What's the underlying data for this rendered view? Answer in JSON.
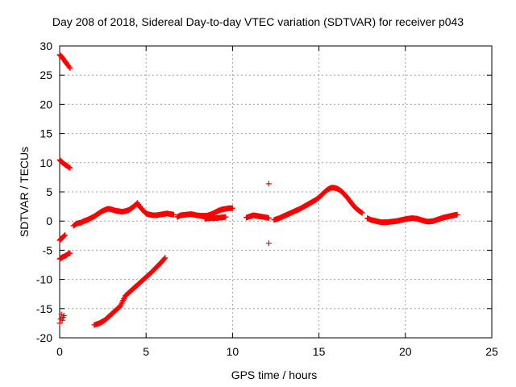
{
  "chart_data": {
    "type": "scatter",
    "title": "Day 208 of 2018, Sidereal Day-to-day VTEC variation (SDTVAR) for receiver p043",
    "xlabel": "GPS time / hours",
    "ylabel": "SDTVAR / TECUs",
    "xlim": [
      0,
      25
    ],
    "ylim": [
      -20,
      30
    ],
    "xticks": [
      0,
      5,
      10,
      15,
      20,
      25
    ],
    "yticks": [
      -20,
      -15,
      -10,
      -5,
      0,
      5,
      10,
      15,
      20,
      25,
      30
    ],
    "grid": true,
    "marker": "+",
    "color": "#ff0000",
    "series": [
      {
        "name": "SDTVAR",
        "segments": [
          {
            "x": [
              0.0,
              0.1,
              0.2,
              0.3,
              0.4,
              0.5,
              0.6
            ],
            "y": [
              28.5,
              28.2,
              27.8,
              27.4,
              27.0,
              26.6,
              26.2
            ]
          },
          {
            "x": [
              0.0,
              0.1,
              0.2,
              0.3,
              0.4,
              0.5,
              0.6
            ],
            "y": [
              10.5,
              10.2,
              9.9,
              9.7,
              9.5,
              9.3,
              9.1
            ]
          },
          {
            "x": [
              0.0,
              0.1,
              0.2,
              0.3
            ],
            "y": [
              -3.3,
              -3.0,
              -2.7,
              -2.4
            ]
          },
          {
            "x": [
              0.0,
              0.1,
              0.2,
              0.3,
              0.4,
              0.5,
              0.6
            ],
            "y": [
              -6.5,
              -6.3,
              -6.1,
              -6.0,
              -5.8,
              -5.6,
              -5.5
            ]
          },
          {
            "x": [
              0.0,
              0.05,
              0.1,
              0.15,
              0.2,
              0.25
            ],
            "y": [
              -17.5,
              -16.8,
              -16.0,
              -17.0,
              -16.5,
              -16.2
            ]
          },
          {
            "x": [
              0.8,
              1.0,
              1.2,
              1.4,
              1.6,
              1.8,
              2.0,
              2.2,
              2.4,
              2.6,
              2.8,
              3.0,
              3.2,
              3.4,
              3.6,
              3.8,
              4.0,
              4.2,
              4.4,
              4.5,
              4.6,
              4.8,
              5.0,
              5.2,
              5.4,
              5.6,
              5.8,
              6.0,
              6.2,
              6.4,
              6.6
            ],
            "y": [
              -0.8,
              -0.4,
              -0.3,
              0.0,
              0.2,
              0.5,
              0.8,
              1.2,
              1.6,
              1.9,
              2.1,
              2.0,
              1.8,
              1.7,
              1.6,
              1.7,
              1.9,
              2.3,
              2.8,
              3.1,
              2.6,
              1.9,
              1.3,
              1.1,
              1.0,
              1.0,
              1.1,
              1.2,
              1.3,
              1.2,
              1.1
            ]
          },
          {
            "x": [
              2.0,
              2.3,
              2.6,
              2.9,
              3.2,
              3.5,
              3.8,
              4.1,
              4.4,
              4.7,
              5.0,
              5.3,
              5.6,
              5.9,
              6.1
            ],
            "y": [
              -17.8,
              -17.5,
              -17.0,
              -16.2,
              -15.4,
              -14.6,
              -12.8,
              -12.0,
              -11.2,
              -10.4,
              -9.6,
              -8.8,
              -7.9,
              -7.0,
              -6.3
            ]
          },
          {
            "x": [
              6.8,
              7.0,
              7.3,
              7.6,
              7.9,
              8.2,
              8.5,
              8.8,
              9.0,
              9.2,
              9.4,
              9.6,
              9.8,
              10.0
            ],
            "y": [
              0.7,
              1.0,
              1.1,
              1.2,
              1.0,
              0.9,
              0.9,
              1.2,
              1.5,
              1.8,
              2.0,
              2.1,
              2.2,
              2.2
            ]
          },
          {
            "x": [
              8.4,
              8.7,
              9.0,
              9.3,
              9.6
            ],
            "y": [
              0.4,
              0.5,
              0.5,
              0.6,
              0.7
            ]
          },
          {
            "x": [
              10.8,
              11.0,
              11.2,
              11.4,
              11.6,
              11.8,
              12.0,
              12.1
            ],
            "y": [
              0.6,
              0.8,
              1.0,
              0.9,
              0.8,
              0.7,
              0.6,
              0.5
            ]
          },
          {
            "x": [
              12.1,
              12.1
            ],
            "y": [
              6.4,
              -3.8
            ]
          },
          {
            "x": [
              12.4,
              12.7,
              13.0,
              13.3,
              13.6,
              13.9,
              14.2,
              14.5,
              14.8,
              15.1,
              15.3,
              15.5,
              15.7,
              15.9,
              16.1,
              16.3,
              16.5,
              16.7,
              16.9,
              17.1,
              17.3,
              17.5
            ],
            "y": [
              0.2,
              0.5,
              0.9,
              1.3,
              1.7,
              2.1,
              2.6,
              3.1,
              3.6,
              4.3,
              4.9,
              5.4,
              5.7,
              5.7,
              5.5,
              5.1,
              4.5,
              3.8,
              3.0,
              2.3,
              1.8,
              1.4
            ]
          },
          {
            "x": [
              17.8,
              18.0,
              18.3,
              18.6,
              18.9,
              19.2,
              19.5,
              19.8,
              20.1,
              20.4,
              20.7,
              21.0,
              21.3,
              21.6,
              21.9,
              22.2,
              22.5,
              22.8,
              23.0
            ],
            "y": [
              0.5,
              0.2,
              0.0,
              -0.2,
              -0.2,
              -0.1,
              0.0,
              0.2,
              0.4,
              0.5,
              0.4,
              0.1,
              -0.1,
              0.0,
              0.3,
              0.6,
              0.8,
              1.0,
              1.1
            ]
          }
        ]
      }
    ]
  }
}
